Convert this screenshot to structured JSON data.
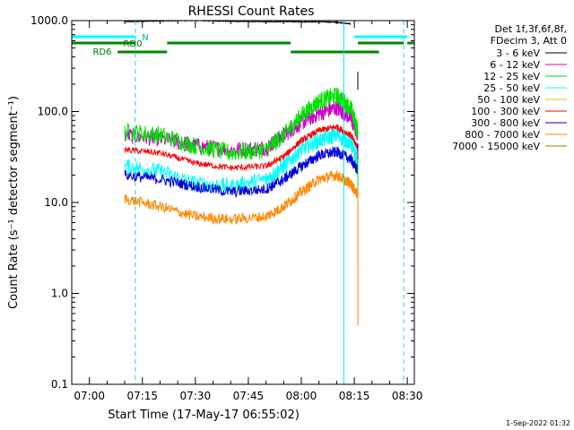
{
  "chart_data": {
    "type": "line",
    "title": "RHESSI Count Rates",
    "xlabel": "Start Time (17-May-17 06:55:02)",
    "ylabel": "Count Rate (s⁻¹ detector segment⁻¹)",
    "y_scale": "log",
    "ylim": [
      0.1,
      1000
    ],
    "xlim": [
      "06:55",
      "08:32"
    ],
    "x_ticks": [
      "07:00",
      "07:15",
      "07:30",
      "07:45",
      "08:00",
      "08:15",
      "08:30"
    ],
    "y_ticks": [
      "0.1",
      "1.0",
      "10.0",
      "100.0",
      "1000.0"
    ],
    "legend": {
      "placement": "top-right outside",
      "header": [
        "Det 1f,3f,6f,8f,",
        "FDecim 3, Att 0"
      ]
    },
    "x": [
      "07:10",
      "07:20",
      "07:30",
      "07:40",
      "07:50",
      "07:55",
      "08:00",
      "08:05",
      "08:10",
      "08:14",
      "08:16"
    ],
    "series": [
      {
        "name": "3 - 6 keV",
        "color": "#000000",
        "values": [
          970,
          990,
          1000,
          980,
          970,
          975,
          970,
          970,
          960,
          920,
          null
        ]
      },
      {
        "name": "6 - 12 keV",
        "color": "#cc00cc",
        "values": [
          55,
          50,
          42,
          38,
          40,
          55,
          75,
          95,
          110,
          85,
          55
        ]
      },
      {
        "name": "12 - 25 keV",
        "color": "#00dd00",
        "values": [
          60,
          55,
          42,
          35,
          38,
          55,
          90,
          130,
          150,
          110,
          60
        ]
      },
      {
        "name": "25 - 50 keV",
        "color": "#00ffff",
        "values": [
          25,
          22,
          16,
          15,
          18,
          25,
          38,
          48,
          55,
          45,
          28
        ]
      },
      {
        "name": "50 - 100 keV",
        "color": "#cccc00",
        "values": [
          null,
          null,
          null,
          null,
          null,
          null,
          null,
          null,
          null,
          null,
          null
        ]
      },
      {
        "name": "100 - 300 keV",
        "color": "#ff0000",
        "values": [
          38,
          35,
          27,
          24,
          25,
          32,
          48,
          62,
          68,
          55,
          40
        ]
      },
      {
        "name": "300 - 800 keV",
        "color": "#0000dd",
        "values": [
          20,
          18,
          15,
          13,
          14,
          18,
          25,
          33,
          36,
          30,
          22
        ]
      },
      {
        "name": "800 - 7000 keV",
        "color": "#ff8800",
        "values": [
          11,
          9,
          7,
          6.5,
          7,
          9,
          13,
          18,
          20,
          16,
          12
        ]
      },
      {
        "name": "7000 - 15000 keV",
        "color": "#808000",
        "values": [
          null,
          null,
          null,
          null,
          null,
          null,
          null,
          null,
          null,
          null,
          null
        ]
      }
    ],
    "annotations": [
      {
        "text": "N",
        "color": "#00aaaa"
      },
      {
        "text": "RD0",
        "color": "#007700"
      },
      {
        "text": "RD6",
        "color": "#007700"
      }
    ],
    "state_bars": [
      {
        "label": "N",
        "color": "#00ffff",
        "segments": [
          [
            "06:55",
            "07:13"
          ],
          [
            "08:15",
            "08:30"
          ]
        ]
      },
      {
        "label": "RD0",
        "color": "#008800",
        "segments": [
          [
            "06:55",
            "07:13"
          ],
          [
            "07:22",
            "07:57"
          ],
          [
            "08:16",
            "08:29"
          ],
          [
            "08:30",
            "08:32"
          ]
        ]
      },
      {
        "label": "RD6",
        "color": "#008800",
        "segments": [
          [
            "07:08",
            "07:22"
          ],
          [
            "07:57",
            "08:22"
          ]
        ]
      }
    ],
    "vlines": [
      {
        "x": "06:55",
        "style": "solid"
      },
      {
        "x": "07:13",
        "style": "dashed"
      },
      {
        "x": "08:12",
        "style": "solid"
      },
      {
        "x": "08:29",
        "style": "dashed"
      }
    ]
  },
  "footer": {
    "timestamp": "1-Sep-2022 01:32"
  }
}
